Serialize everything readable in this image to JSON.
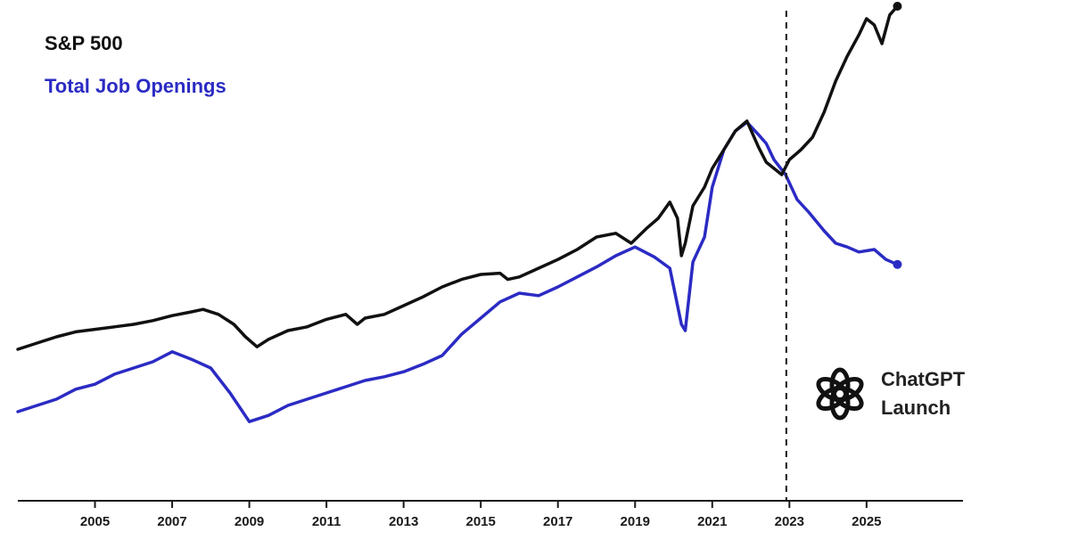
{
  "chart_data": {
    "type": "line",
    "title": "",
    "xlabel": "",
    "ylabel": "",
    "xlim": [
      2003.0,
      2027.5
    ],
    "x_ticks": [
      "2005",
      "2007",
      "2009",
      "2011",
      "2013",
      "2015",
      "2017",
      "2019",
      "2021",
      "2023",
      "2025"
    ],
    "grid": false,
    "legend_position": "top-left",
    "annotation": {
      "x": 2022.92,
      "lines": [
        "ChatGPT",
        "Launch"
      ],
      "icon": "openai-logo-icon"
    },
    "series": [
      {
        "name": "S&P 500",
        "color": "#111111",
        "x": [
          2003.0,
          2003.5,
          2004.0,
          2004.5,
          2005.0,
          2005.5,
          2006.0,
          2006.5,
          2007.0,
          2007.5,
          2007.8,
          2008.2,
          2008.6,
          2008.9,
          2009.2,
          2009.5,
          2010.0,
          2010.5,
          2011.0,
          2011.5,
          2011.8,
          2012.0,
          2012.5,
          2013.0,
          2013.5,
          2014.0,
          2014.5,
          2015.0,
          2015.5,
          2015.7,
          2016.0,
          2016.5,
          2017.0,
          2017.5,
          2018.0,
          2018.5,
          2018.9,
          2019.3,
          2019.6,
          2019.9,
          2020.1,
          2020.2,
          2020.3,
          2020.5,
          2020.8,
          2021.0,
          2021.3,
          2021.6,
          2021.9,
          2022.0,
          2022.2,
          2022.4,
          2022.6,
          2022.8,
          2023.0,
          2023.3,
          2023.6,
          2023.9,
          2024.2,
          2024.5,
          2024.8,
          2025.0,
          2025.2,
          2025.4,
          2025.6,
          2025.8
        ],
        "values": [
          0.2,
          0.25,
          0.3,
          0.34,
          0.36,
          0.38,
          0.4,
          0.43,
          0.47,
          0.5,
          0.52,
          0.48,
          0.4,
          0.3,
          0.22,
          0.28,
          0.35,
          0.38,
          0.44,
          0.48,
          0.4,
          0.45,
          0.48,
          0.55,
          0.62,
          0.7,
          0.76,
          0.8,
          0.81,
          0.76,
          0.78,
          0.85,
          0.92,
          1.0,
          1.1,
          1.13,
          1.05,
          1.17,
          1.25,
          1.38,
          1.25,
          0.95,
          1.05,
          1.35,
          1.5,
          1.65,
          1.8,
          1.95,
          2.03,
          1.96,
          1.82,
          1.7,
          1.65,
          1.6,
          1.72,
          1.8,
          1.9,
          2.1,
          2.35,
          2.55,
          2.72,
          2.85,
          2.8,
          2.65,
          2.88,
          2.95
        ]
      },
      {
        "name": "Total Job Openings",
        "color": "#2b2bc4",
        "x": [
          2003.0,
          2003.5,
          2004.0,
          2004.5,
          2005.0,
          2005.5,
          2006.0,
          2006.5,
          2007.0,
          2007.5,
          2008.0,
          2008.5,
          2009.0,
          2009.5,
          2010.0,
          2010.5,
          2011.0,
          2011.5,
          2012.0,
          2012.5,
          2013.0,
          2013.5,
          2014.0,
          2014.5,
          2015.0,
          2015.5,
          2016.0,
          2016.5,
          2017.0,
          2017.5,
          2018.0,
          2018.5,
          2019.0,
          2019.5,
          2019.9,
          2020.2,
          2020.3,
          2020.5,
          2020.8,
          2021.0,
          2021.3,
          2021.6,
          2021.9,
          2022.2,
          2022.4,
          2022.6,
          2022.9,
          2023.2,
          2023.5,
          2023.9,
          2024.2,
          2024.5,
          2024.8,
          2025.2,
          2025.5,
          2025.8
        ],
        "values": [
          -0.3,
          -0.25,
          -0.2,
          -0.12,
          -0.08,
          0.0,
          0.05,
          0.1,
          0.18,
          0.12,
          0.05,
          -0.15,
          -0.38,
          -0.33,
          -0.25,
          -0.2,
          -0.15,
          -0.1,
          -0.05,
          -0.02,
          0.02,
          0.08,
          0.15,
          0.32,
          0.45,
          0.58,
          0.65,
          0.63,
          0.7,
          0.78,
          0.86,
          0.95,
          1.02,
          0.94,
          0.85,
          0.4,
          0.35,
          0.9,
          1.1,
          1.5,
          1.8,
          1.95,
          2.02,
          1.92,
          1.85,
          1.72,
          1.6,
          1.4,
          1.3,
          1.15,
          1.05,
          1.02,
          0.98,
          1.0,
          0.92,
          0.88
        ]
      }
    ]
  }
}
